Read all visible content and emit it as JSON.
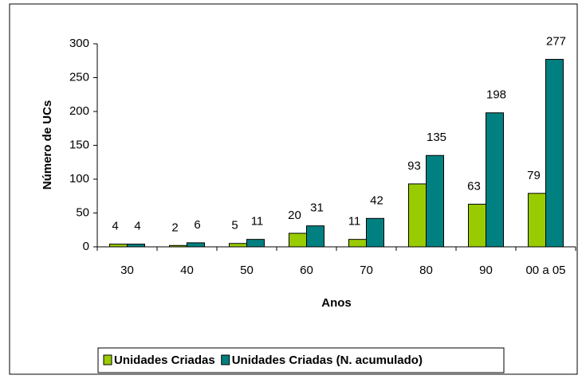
{
  "chart_data": {
    "type": "bar",
    "categories": [
      "30",
      "40",
      "50",
      "60",
      "70",
      "80",
      "90",
      "00 a 05"
    ],
    "series": [
      {
        "name": "Unidades Criadas",
        "color": "#99cc00",
        "values": [
          4,
          2,
          5,
          20,
          11,
          93,
          63,
          79
        ]
      },
      {
        "name": "Unidades Criadas (N. acumulado)",
        "color": "#008080",
        "values": [
          4,
          6,
          11,
          31,
          42,
          135,
          198,
          277
        ]
      }
    ],
    "ylim": [
      0,
      300
    ],
    "yticks": [
      0,
      50,
      100,
      150,
      200,
      250,
      300
    ],
    "y_label": "Número de UCs",
    "x_label": "Anos",
    "legend": "bottom"
  }
}
